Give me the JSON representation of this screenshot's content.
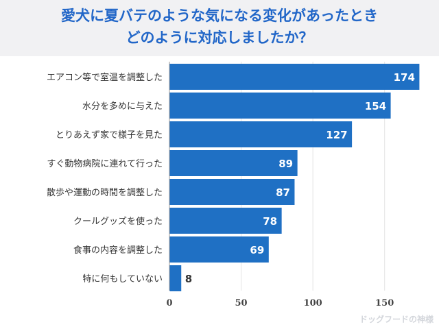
{
  "title": {
    "line1": "愛犬に夏バテのような気になる変化があったとき",
    "line2": "どのように対応しましたか？"
  },
  "chart_data": {
    "type": "bar",
    "orientation": "horizontal",
    "categories": [
      "エアコン等で室温を調整した",
      "水分を多めに与えた",
      "とりあえず家で様子を見た",
      "すぐ動物病院に連れて行った",
      "散歩や運動の時間を調整した",
      "クールグッズを使った",
      "食事の内容を調整した",
      "特に何もしていない"
    ],
    "values": [
      174,
      154,
      127,
      89,
      87,
      78,
      69,
      8
    ],
    "xlim": [
      0,
      175
    ],
    "xticks": [
      0,
      50,
      100,
      150
    ],
    "grid": true,
    "bar_color": "#1f70c4"
  },
  "watermark": "ドッグフードの神様"
}
